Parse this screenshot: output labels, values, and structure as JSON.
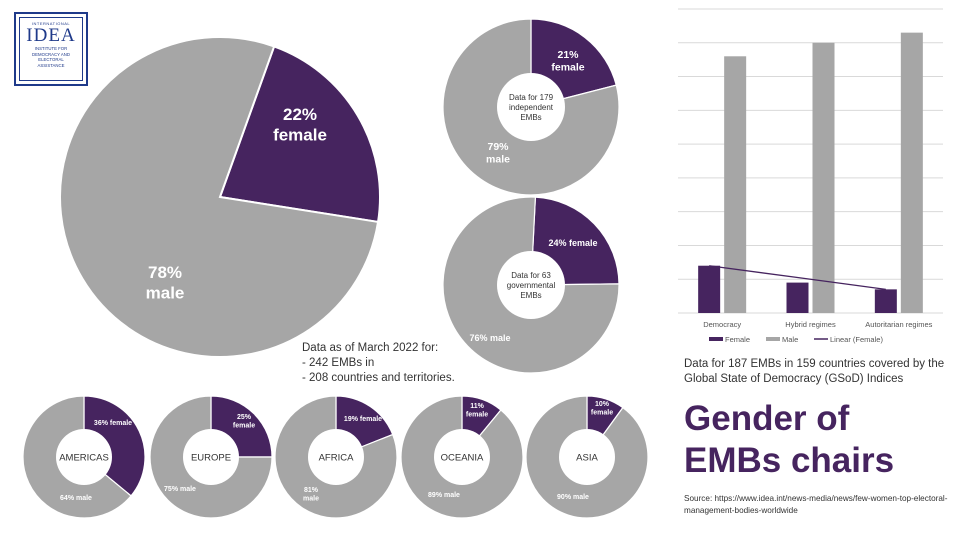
{
  "logo": {
    "top_text": "INTERNATIONAL",
    "mark": "IDEA",
    "lines": [
      "INSTITUTE FOR",
      "DEMOCRACY AND",
      "ELECTORAL",
      "ASSISTANCE"
    ]
  },
  "colors": {
    "female": "#46245f",
    "male": "#a6a6a6",
    "trend": "#46245f"
  },
  "notes": {
    "heading": "Data as of March 2022 for:",
    "items": [
      "- 242 EMBs in",
      "- 208 countries and territories."
    ]
  },
  "bar_caption": "Data for 187 EMBs in 159 countries covered by the Global State of Democracy (GSoD) Indices",
  "title_lines": [
    "Gender of",
    "EMBs chairs"
  ],
  "source": "Source: https://www.idea.int/news-media/news/few-women-top-electoral-management-bodies-worldwide",
  "chart_data": [
    {
      "type": "pie",
      "id": "overall",
      "slices": [
        {
          "name": "female",
          "value": 22,
          "label_lines": [
            "22%",
            "female"
          ]
        },
        {
          "name": "male",
          "value": 78,
          "label_lines": [
            "78%",
            "male"
          ]
        }
      ]
    },
    {
      "type": "pie",
      "id": "independent",
      "center_text": [
        "Data for 179",
        "independent",
        "EMBs"
      ],
      "slices": [
        {
          "name": "female",
          "value": 21,
          "label_lines": [
            "21%",
            "female"
          ]
        },
        {
          "name": "male",
          "value": 79,
          "label_lines": [
            "79%",
            "male"
          ]
        }
      ]
    },
    {
      "type": "pie",
      "id": "governmental",
      "center_text": [
        "Data for 63",
        "governmental",
        "EMBs"
      ],
      "slices": [
        {
          "name": "female",
          "value": 24,
          "label_lines": [
            "24% female"
          ]
        },
        {
          "name": "male",
          "value": 76,
          "label_lines": [
            "76% male"
          ]
        }
      ]
    },
    {
      "type": "pie",
      "id": "americas",
      "center_text": [
        "AMERICAS"
      ],
      "slices": [
        {
          "name": "female",
          "value": 36,
          "label_lines": [
            "36% female"
          ]
        },
        {
          "name": "male",
          "value": 64,
          "label_lines": [
            "64% male"
          ]
        }
      ]
    },
    {
      "type": "pie",
      "id": "europe",
      "center_text": [
        "EUROPE"
      ],
      "slices": [
        {
          "name": "female",
          "value": 25,
          "label_lines": [
            "25%",
            "female"
          ]
        },
        {
          "name": "male",
          "value": 75,
          "label_lines": [
            "75% male"
          ]
        }
      ]
    },
    {
      "type": "pie",
      "id": "africa",
      "center_text": [
        "AFRICA"
      ],
      "slices": [
        {
          "name": "female",
          "value": 19,
          "label_lines": [
            "19% female"
          ]
        },
        {
          "name": "male",
          "value": 81,
          "label_lines": [
            "81%",
            "male"
          ]
        }
      ]
    },
    {
      "type": "pie",
      "id": "oceania",
      "center_text": [
        "OCEANIA"
      ],
      "slices": [
        {
          "name": "female",
          "value": 11,
          "label_lines": [
            "11%",
            "female"
          ]
        },
        {
          "name": "male",
          "value": 89,
          "label_lines": [
            "89% male"
          ]
        }
      ]
    },
    {
      "type": "pie",
      "id": "asia",
      "center_text": [
        "ASIA"
      ],
      "slices": [
        {
          "name": "female",
          "value": 10,
          "label_lines": [
            "10%",
            "female"
          ]
        },
        {
          "name": "male",
          "value": 90,
          "label_lines": [
            "90% male"
          ]
        }
      ]
    },
    {
      "type": "bar",
      "id": "regimes",
      "categories": [
        "Democracy",
        "Hybrid regimes",
        "Autoritarian regimes"
      ],
      "series": [
        {
          "name": "Female",
          "values": [
            14,
            9,
            7
          ]
        },
        {
          "name": "Male",
          "values": [
            76,
            80,
            83
          ]
        }
      ],
      "trendline": {
        "name": "Linear (Female)",
        "values": [
          14,
          10.5,
          7
        ]
      },
      "ylim": [
        0,
        90
      ],
      "grid": true,
      "legend_position": "bottom"
    }
  ]
}
